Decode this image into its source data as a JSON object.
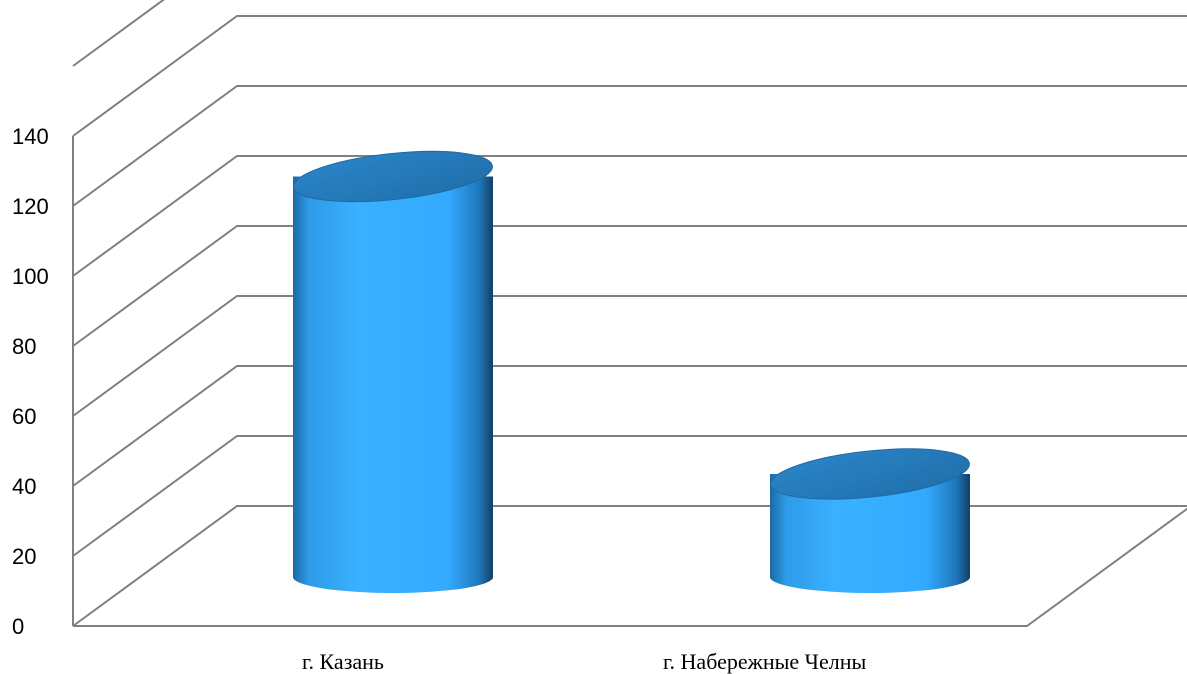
{
  "chart_data": {
    "type": "bar",
    "style": "3d-cylinder",
    "categories": [
      "г. Казань",
      "г. Набережные Челны"
    ],
    "values": [
      133,
      48
    ],
    "ylim": [
      0,
      140
    ],
    "yticks": [
      "0",
      "20",
      "40",
      "60",
      "80",
      "100",
      "120",
      "140"
    ],
    "grid": true,
    "legend": "none",
    "colors": {
      "bar": "#33aaff",
      "bar_top": "#2880bf",
      "bar_edge": "#15558a",
      "grid": "#808080"
    }
  }
}
